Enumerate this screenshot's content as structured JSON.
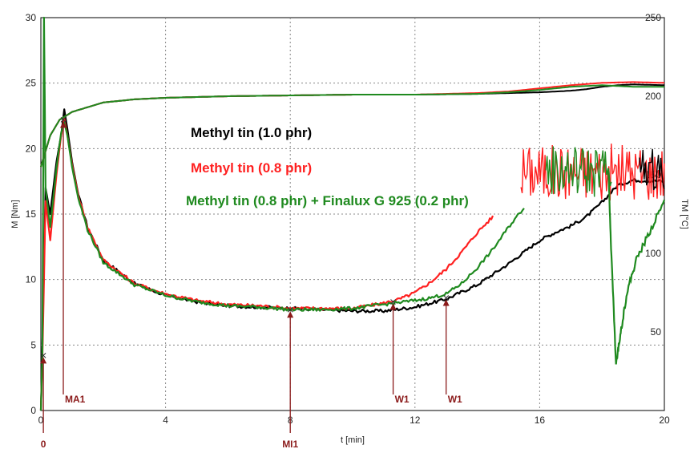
{
  "chart_data": {
    "type": "line",
    "xlabel": "t [min]",
    "ylabel": "M [Nm]",
    "y2label": "TM [°C]",
    "xlim": [
      0,
      20
    ],
    "ylim": [
      0,
      30
    ],
    "y2lim": [
      0,
      250
    ],
    "xticks": [
      "0",
      "4",
      "8",
      "12",
      "16",
      "20"
    ],
    "yticks": [
      "0",
      "5",
      "10",
      "15",
      "20",
      "25",
      "30"
    ],
    "y2ticks": [
      "50",
      "100",
      "150",
      "200",
      "250"
    ],
    "grid": true,
    "legend_position": "center",
    "legend": [
      {
        "label": "Methyl tin (1.0 phr)",
        "color": "#000000"
      },
      {
        "label": "Methyl tin (0.8 phr)",
        "color": "#ff2020"
      },
      {
        "label": "Methyl tin (0.8 phr) + Finalux G 925 (0.2 phr)",
        "color": "#1f8a1f"
      }
    ],
    "series": [
      {
        "name": "Methyl tin (1.0 phr)",
        "color": "#000000",
        "axis": "left",
        "x": [
          0,
          0.05,
          0.15,
          0.3,
          0.5,
          0.65,
          0.75,
          0.85,
          1.0,
          1.2,
          1.5,
          2,
          3,
          4,
          5,
          6,
          7,
          8,
          9,
          10,
          11,
          12,
          13,
          14,
          15,
          15.5,
          16,
          16.5,
          17,
          17.5,
          18,
          18.5,
          19,
          20
        ],
        "y": [
          0,
          5,
          17,
          15,
          19,
          21,
          23,
          21.5,
          19,
          16.5,
          14,
          11.5,
          9.7,
          8.8,
          8.3,
          8.0,
          7.9,
          7.8,
          7.7,
          7.6,
          7.6,
          7.9,
          8.5,
          9.6,
          11.2,
          12.1,
          13.0,
          13.6,
          14.1,
          14.8,
          15.9,
          17.2,
          17.6,
          17.5
        ]
      },
      {
        "name": "Methyl tin (0.8 phr)",
        "color": "#ff2020",
        "axis": "left",
        "x": [
          0,
          0.05,
          0.15,
          0.3,
          0.5,
          0.65,
          0.75,
          0.85,
          1.0,
          1.2,
          1.5,
          2,
          3,
          4,
          5,
          6,
          7,
          8,
          9,
          10,
          11,
          11.5,
          12,
          12.5,
          13,
          13.5,
          14,
          14.5
        ],
        "y": [
          0,
          4,
          16,
          13,
          18,
          21,
          22.3,
          21,
          18.8,
          16.4,
          14,
          11.5,
          9.7,
          8.9,
          8.4,
          8.1,
          8.0,
          7.8,
          7.8,
          7.8,
          8.2,
          8.5,
          9.0,
          9.8,
          10.8,
          12.1,
          13.6,
          14.8
        ]
      },
      {
        "name": "Methyl tin (0.8 phr) + Finalux G 925 (0.2 phr)",
        "color": "#1f8a1f",
        "axis": "left",
        "x": [
          0,
          0.05,
          0.1,
          0.15,
          0.3,
          0.5,
          0.65,
          0.75,
          0.85,
          1.0,
          1.2,
          1.5,
          2,
          3,
          4,
          5,
          6,
          7,
          8,
          9,
          10,
          11,
          12,
          12.5,
          13,
          13.5,
          14,
          14.5,
          15,
          15.5
        ],
        "y": [
          0,
          4.5,
          30,
          17,
          14,
          18.5,
          21.2,
          22,
          21,
          18.6,
          16.2,
          13.8,
          11.3,
          9.6,
          8.8,
          8.3,
          8.0,
          7.9,
          7.7,
          7.7,
          7.8,
          8.1,
          8.4,
          8.6,
          8.9,
          9.7,
          10.9,
          12.3,
          14.0,
          15.5
        ]
      },
      {
        "name": "TM Methyl tin (1.0 phr)",
        "color": "#000000",
        "axis": "right",
        "x": [
          0,
          0.3,
          0.6,
          1,
          2,
          3,
          4,
          6,
          8,
          10,
          12,
          14,
          15,
          16,
          17,
          17.5,
          18,
          18.5,
          19,
          20
        ],
        "y": [
          155,
          175,
          185,
          190,
          196,
          198,
          199,
          200,
          200.5,
          201,
          201,
          201.5,
          202,
          202.5,
          203.5,
          204.5,
          206,
          207,
          207.5,
          207
        ]
      },
      {
        "name": "TM Methyl tin (0.8 phr)",
        "color": "#ff2020",
        "axis": "right",
        "x": [
          0,
          0.3,
          0.6,
          1,
          2,
          3,
          4,
          6,
          8,
          10,
          12,
          14,
          15,
          16,
          17,
          18,
          19,
          20
        ],
        "y": [
          155,
          175,
          185,
          190,
          196,
          198,
          199,
          200,
          200.5,
          201,
          201,
          202,
          203,
          205,
          207,
          208.5,
          209,
          208.5
        ]
      },
      {
        "name": "TM Methyl tin (0.8 phr) + Finalux G 925 (0.2 phr)",
        "color": "#1f8a1f",
        "axis": "right",
        "x": [
          0,
          0.3,
          0.6,
          1,
          2,
          3,
          4,
          6,
          8,
          10,
          12,
          14,
          15,
          16,
          17,
          18,
          19,
          20
        ],
        "y": [
          155,
          175,
          185,
          190,
          196,
          198,
          199,
          200,
          200.5,
          201,
          201,
          201.5,
          202.5,
          204,
          206,
          207,
          206,
          206
        ]
      }
    ],
    "noisy_bands": [
      {
        "color": "#ff2020",
        "x0": 15.4,
        "x1": 20,
        "center": 18.2,
        "amp": 2.2
      },
      {
        "color": "#1f8a1f",
        "x0": 16.2,
        "x1": 18.3,
        "center": 18.3,
        "amp": 2.0
      },
      {
        "color": "#000000",
        "x0": 19.2,
        "x1": 20,
        "center": 18.4,
        "amp": 1.6
      }
    ],
    "green_dip": {
      "color": "#1f8a1f",
      "x": [
        18.2,
        18.3,
        18.45,
        18.6,
        18.8,
        19.1,
        19.5,
        20
      ],
      "y": [
        18.5,
        12,
        3.5,
        6,
        9,
        11.5,
        13.5,
        16
      ]
    },
    "markers": [
      {
        "label": "0",
        "x": 0.08,
        "y": 4.2,
        "label_pos": "bottom"
      },
      {
        "label": "MA1",
        "x": 0.72,
        "y": 22.2,
        "label_pos": "axis"
      },
      {
        "label": "MI1",
        "x": 8.0,
        "y": 7.7,
        "label_pos": "bottom"
      },
      {
        "label": "W1",
        "x": 11.3,
        "y": 8.3,
        "label_pos": "axis"
      },
      {
        "label": "W1",
        "x": 13.0,
        "y": 8.6,
        "label_pos": "axis"
      }
    ]
  }
}
